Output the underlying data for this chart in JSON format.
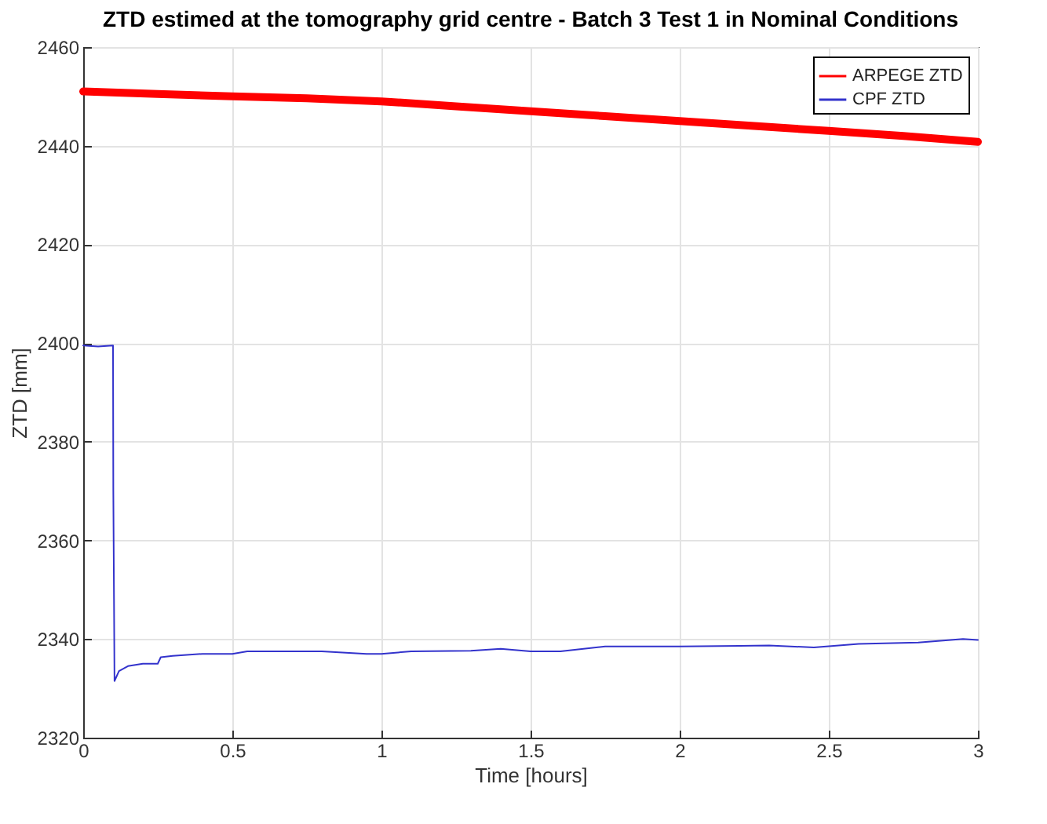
{
  "chart_data": {
    "type": "line",
    "title": "ZTD estimed at the tomography grid centre - Batch 3 Test 1 in Nominal Conditions",
    "xlabel": "Time [hours]",
    "ylabel": "ZTD [mm]",
    "xlim": [
      0,
      3
    ],
    "xticks": [
      0,
      0.5,
      1,
      1.5,
      2,
      2.5,
      3
    ],
    "ylim": [
      2320,
      2460
    ],
    "yticks": [
      2320,
      2340,
      2360,
      2380,
      2400,
      2420,
      2440,
      2460
    ],
    "grid": true,
    "legend": "top right",
    "line_style": "solid",
    "marker": "none",
    "series": [
      {
        "name": "ARPEGE ZTD",
        "color": "#ff0000",
        "x": [
          0,
          0.25,
          0.5,
          0.75,
          1,
          1.25,
          1.5,
          1.75,
          2,
          2.25,
          2.5,
          2.75,
          3
        ],
        "values": [
          2451,
          2450.5,
          2450,
          2449.6,
          2449,
          2448,
          2447,
          2446,
          2445,
          2444,
          2443,
          2442,
          2440.8
        ]
      },
      {
        "name": "CPF ZTD",
        "color": "#3333cc",
        "x": [
          0,
          0.05,
          0.1,
          0.101,
          0.105,
          0.12,
          0.15,
          0.2,
          0.25,
          0.26,
          0.3,
          0.4,
          0.5,
          0.55,
          0.7,
          0.8,
          0.95,
          1.0,
          1.1,
          1.3,
          1.4,
          1.5,
          1.6,
          1.75,
          2.0,
          2.2,
          2.3,
          2.45,
          2.6,
          2.8,
          2.95,
          3.0
        ],
        "values": [
          2399.5,
          2399.3,
          2399.5,
          2370,
          2331.5,
          2333.5,
          2334.5,
          2335,
          2335,
          2336.3,
          2336.6,
          2337,
          2337,
          2337.5,
          2337.5,
          2337.5,
          2337,
          2337,
          2337.5,
          2337.6,
          2338,
          2337.5,
          2337.5,
          2338.5,
          2338.5,
          2338.6,
          2338.7,
          2338.3,
          2339,
          2339.3,
          2340,
          2339.8
        ]
      }
    ]
  }
}
